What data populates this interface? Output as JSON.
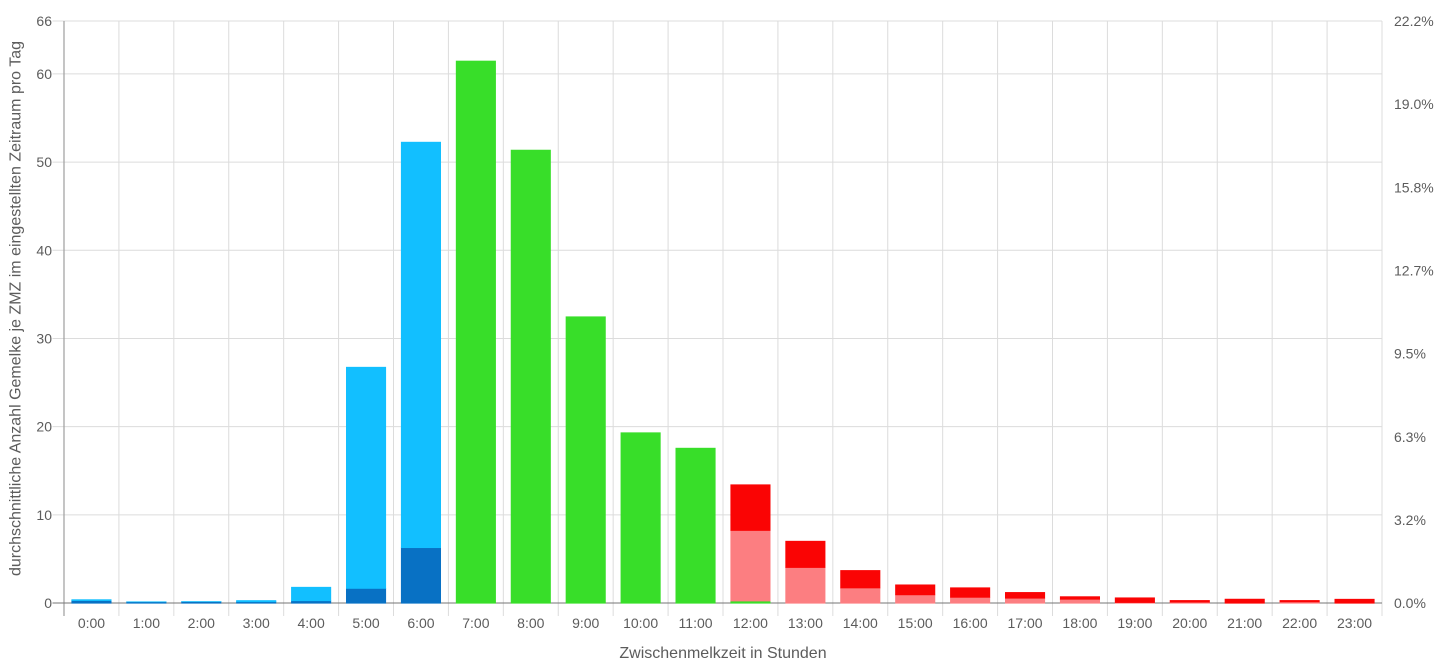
{
  "chart_data": {
    "type": "bar",
    "stacked": true,
    "title": "",
    "xlabel": "Zwischenmelkzeit in Stunden",
    "ylabel": "durchschnittliche Anzahl Gemelke je ZMZ im eingestellten Zeitraum pro Tag",
    "categories": [
      "0:00",
      "1:00",
      "2:00",
      "3:00",
      "4:00",
      "5:00",
      "6:00",
      "7:00",
      "8:00",
      "9:00",
      "10:00",
      "11:00",
      "12:00",
      "13:00",
      "14:00",
      "15:00",
      "16:00",
      "17:00",
      "18:00",
      "19:00",
      "20:00",
      "21:00",
      "22:00",
      "23:00"
    ],
    "series": [
      {
        "name": "blue-dark",
        "color": "#0871C4",
        "values": [
          0.3,
          0.16,
          0.18,
          0.17,
          0.28,
          1.68,
          6.3,
          0,
          0,
          0,
          0,
          0,
          0,
          0,
          0,
          0,
          0,
          0,
          0,
          0,
          0,
          0,
          0,
          0
        ]
      },
      {
        "name": "blue-light",
        "color": "#12BFFF",
        "values": [
          0.12,
          0.02,
          0.02,
          0.15,
          1.55,
          25.1,
          46.0,
          0,
          0,
          0,
          0,
          0,
          0,
          0,
          0,
          0,
          0,
          0,
          0,
          0,
          0,
          0,
          0,
          0
        ]
      },
      {
        "name": "green",
        "color": "#38DE29",
        "values": [
          0,
          0,
          0,
          0,
          0,
          0,
          0,
          61.5,
          51.4,
          32.5,
          19.35,
          17.6,
          0.25,
          0,
          0,
          0,
          0,
          0,
          0,
          0,
          0,
          0,
          0,
          0
        ]
      },
      {
        "name": "red-light",
        "color": "#FC7E81",
        "values": [
          0,
          0,
          0,
          0,
          0,
          0,
          0,
          0,
          0,
          0,
          0,
          0,
          8.0,
          4.05,
          1.73,
          0.95,
          0.67,
          0.57,
          0.45,
          0.08,
          0.12,
          0,
          0.15,
          0
        ]
      },
      {
        "name": "red",
        "color": "#FA0404",
        "values": [
          0,
          0,
          0,
          0,
          0,
          0,
          0,
          0,
          0,
          0,
          0,
          0,
          5.2,
          3.0,
          2.0,
          1.15,
          1.1,
          0.67,
          0.31,
          0.55,
          0.21,
          0.48,
          0.18,
          0.47
        ]
      }
    ],
    "y_axis_left": {
      "ticks": [
        0,
        10,
        20,
        30,
        40,
        50,
        60,
        66
      ],
      "tick_labels": [
        "0",
        "10",
        "20",
        "30",
        "40",
        "50",
        "60",
        "66"
      ],
      "min": 0,
      "max": 66
    },
    "y_axis_right": {
      "tick_labels": [
        "0.0%",
        "3.2%",
        "6.3%",
        "9.5%",
        "12.7%",
        "15.8%",
        "19.0%",
        "22.2%"
      ],
      "min_percent": 0.0,
      "max_percent": 22.2
    },
    "grid": true,
    "legend": false
  },
  "palette": {
    "background": "#ffffff",
    "grid_line": "#dcdcdc",
    "y_axis_line": "#9e9e9e",
    "x_baseline": "#757575",
    "tick_text": "#5c5c5c",
    "title_text": "#5c5c5c"
  }
}
